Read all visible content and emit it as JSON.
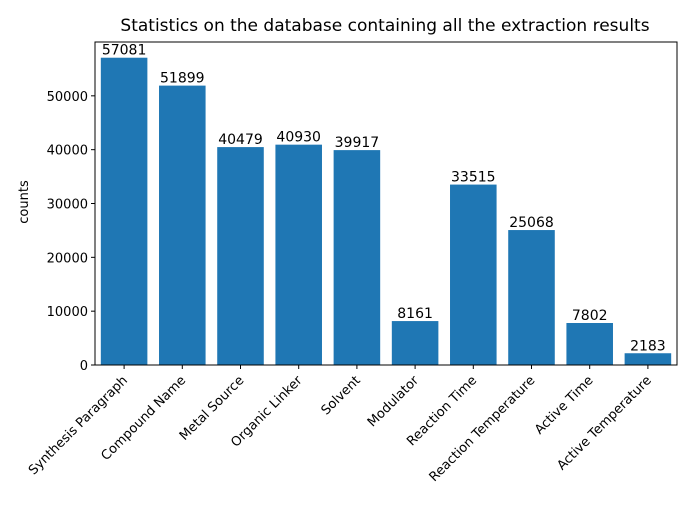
{
  "chart_data": {
    "type": "bar",
    "title": "Statistics on the database containing all the extraction results",
    "xlabel": "",
    "ylabel": "counts",
    "categories": [
      "Synthesis Paragraph",
      "Compound Name",
      "Metal Source",
      "Organic Linker",
      "Solvent",
      "Modulator",
      "Reaction Time",
      "Reaction Temperature",
      "Active Time",
      "Active Temperature"
    ],
    "values": [
      57081,
      51899,
      40479,
      40930,
      39917,
      8161,
      33515,
      25068,
      7802,
      2183
    ],
    "data_labels": [
      "57081",
      "51899",
      "40479",
      "40930",
      "39917",
      "8161",
      "33515",
      "25068",
      "7802",
      "2183"
    ],
    "ylim": [
      0,
      60000
    ],
    "yticks": [
      0,
      10000,
      20000,
      30000,
      40000,
      50000
    ],
    "ytick_labels": [
      "0",
      "10000",
      "20000",
      "30000",
      "40000",
      "50000"
    ],
    "grid": false,
    "legend": "none",
    "bar_color": "#1f77b4"
  }
}
